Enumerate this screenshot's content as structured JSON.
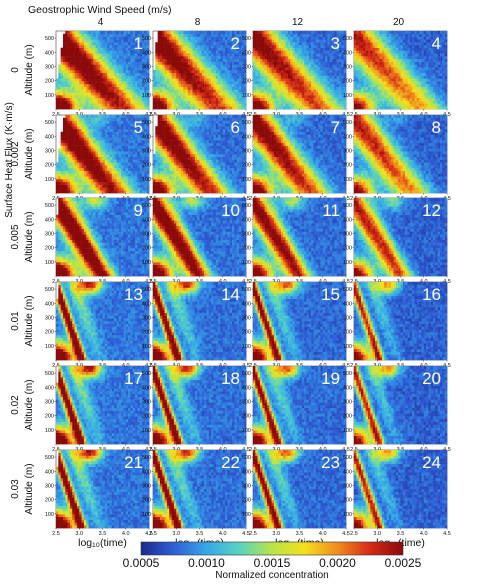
{
  "figure": {
    "col_title": "Geostrophic Wind Speed (m/s)",
    "row_title": "Surface Heat Flux (K·m/s)"
  },
  "chart_data": {
    "type": "heatmap",
    "columns": [
      "4",
      "8",
      "12",
      "20"
    ],
    "rows": [
      "0",
      "0.002",
      "0.005",
      "0.01",
      "0.02",
      "0.03"
    ],
    "panel_numbers": [
      "1",
      "2",
      "3",
      "4",
      "5",
      "6",
      "7",
      "8",
      "9",
      "10",
      "11",
      "12",
      "13",
      "14",
      "15",
      "16",
      "17",
      "18",
      "19",
      "20",
      "21",
      "22",
      "23",
      "24"
    ],
    "ylabel": "Altitude (m)",
    "xlabel": "log₁₀(time)",
    "x_ticks": [
      "2.5",
      "3.0",
      "3.5",
      "4.0",
      "4.5"
    ],
    "y_ticks": [
      "100",
      "200",
      "300",
      "400",
      "500"
    ],
    "xlim": [
      2.5,
      4.5
    ],
    "ylim": [
      0,
      550
    ],
    "colorbar": {
      "min": 0.0005,
      "max": 0.0025,
      "ticks": [
        "0.0005",
        "0.0010",
        "0.0015",
        "0.0020",
        "0.0025"
      ],
      "label": "Normalized concentration",
      "colors": [
        "#1c2a8c",
        "#2e5fd6",
        "#35a8e8",
        "#57d3c2",
        "#b9e448",
        "#f2e01c",
        "#f28c1c",
        "#d42a16",
        "#8a0a0a"
      ]
    }
  }
}
